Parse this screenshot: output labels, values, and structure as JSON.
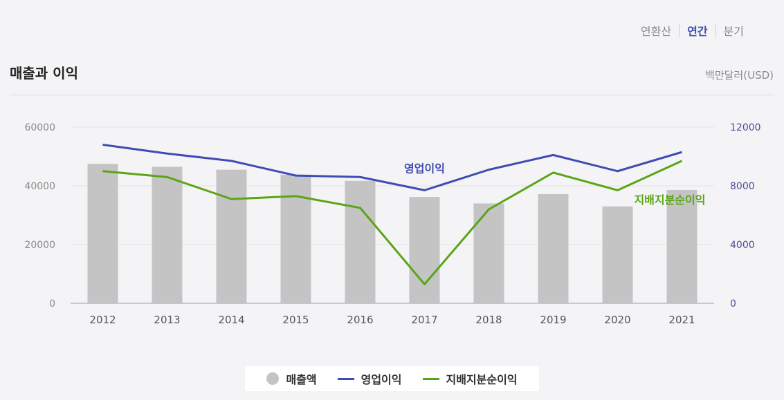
{
  "tabs": [
    {
      "label": "연환산",
      "active": false
    },
    {
      "label": "연간",
      "active": true
    },
    {
      "label": "분기",
      "active": false
    }
  ],
  "title": "매출과 이익",
  "unit": "백만달러(USD)",
  "legend": {
    "revenue": "매출액",
    "operating": "영업이익",
    "net": "지배지분순이익"
  },
  "colors": {
    "bar": "#c4c4c4",
    "operating": "#3f4cb3",
    "net": "#5aa516",
    "axis_left": "#8a8a8a",
    "axis_right": "#4a4a9a"
  },
  "chart_data": {
    "type": "bar+line",
    "categories": [
      "2012",
      "2013",
      "2014",
      "2015",
      "2016",
      "2017",
      "2018",
      "2019",
      "2020",
      "2021"
    ],
    "series": [
      {
        "name": "매출액",
        "type": "bar",
        "axis": "left",
        "values": [
          47500,
          46500,
          45500,
          43800,
          41700,
          36200,
          34000,
          37200,
          33000,
          38600
        ]
      },
      {
        "name": "영업이익",
        "type": "line",
        "axis": "right",
        "values": [
          10800,
          10200,
          9700,
          8700,
          8600,
          7700,
          9100,
          10100,
          9000,
          10300
        ]
      },
      {
        "name": "지배지분순이익",
        "type": "line",
        "axis": "right",
        "values": [
          9000,
          8600,
          7100,
          7300,
          6500,
          1300,
          6400,
          8900,
          7700,
          9700
        ]
      }
    ],
    "left_axis": {
      "min": 0,
      "max": 60000,
      "ticks": [
        "0",
        "20000",
        "40000",
        "60000"
      ]
    },
    "right_axis": {
      "min": 0,
      "max": 12000,
      "ticks": [
        "0",
        "4000",
        "8000",
        "12000"
      ]
    },
    "annotations": [
      {
        "text": "영업이익",
        "series": "영업이익"
      },
      {
        "text": "지배지분순이익",
        "series": "지배지분순이익"
      }
    ],
    "grid": true
  }
}
